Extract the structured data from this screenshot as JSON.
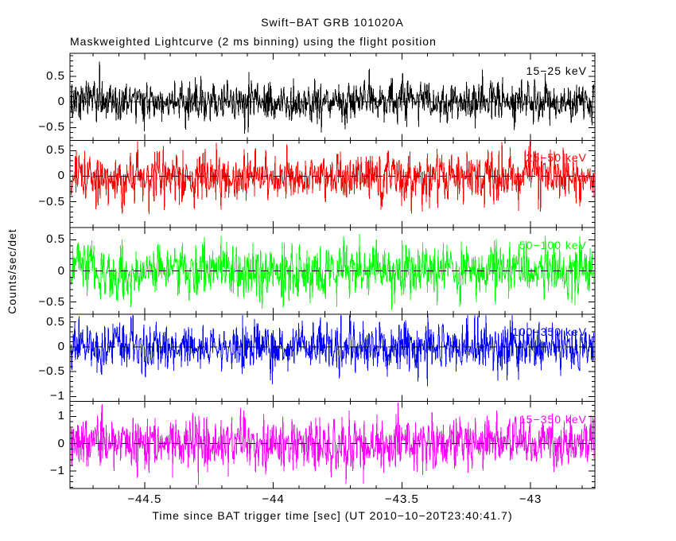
{
  "title": "Swift−BAT GRB 101020A",
  "subtitle": "Maskweighted Lightcurve (2 ms binning) using the flight position",
  "xlabel": "Time since BAT trigger time [sec] (UT 2010−10−20T23:40:41.7)",
  "ylabel": "Counts/sec/det",
  "chart_data": {
    "type": "line",
    "grid": false,
    "legend": "none",
    "x_range": [
      -44.79,
      -42.75
    ],
    "x_minor_step": 0.1,
    "x_major_step": 0.5,
    "x_ticks": [
      {
        "v": -44.5,
        "label": "−44.5"
      },
      {
        "v": -44.0,
        "label": "−44"
      },
      {
        "v": -43.5,
        "label": "−43.5"
      },
      {
        "v": -43.0,
        "label": "−43"
      }
    ],
    "bin_seconds": 0.002,
    "n_bins": 1020,
    "zero_line": {
      "y": 0,
      "style": "dashed",
      "color": "#000000"
    },
    "panels": [
      {
        "band": "15-25-kev",
        "label": "15−25 keV",
        "color": "#000000",
        "ylim": [
          -0.75,
          0.95
        ],
        "y_minor_step": 0.1,
        "y_major_step": 0.5,
        "yticks": [
          {
            "v": 0.5,
            "label": "0.5"
          },
          {
            "v": 0,
            "label": "0"
          },
          {
            "v": -0.5,
            "label": "−0.5"
          }
        ],
        "mean": 0,
        "noise_sigma": 0.21,
        "seed": 1101
      },
      {
        "band": "25-50-kev",
        "label": "25−50 keV",
        "color": "#ff0000",
        "ylim": [
          -1.0,
          0.7
        ],
        "y_minor_step": 0.1,
        "y_major_step": 0.5,
        "yticks": [
          {
            "v": 0.5,
            "label": "0.5"
          },
          {
            "v": 0,
            "label": "0"
          },
          {
            "v": -0.5,
            "label": "−0.5"
          }
        ],
        "mean": 0,
        "noise_sigma": 0.25,
        "seed": 2202
      },
      {
        "band": "50-100-kev",
        "label": "50−100 keV",
        "color": "#00ff00",
        "ylim": [
          -0.7,
          0.7
        ],
        "y_minor_step": 0.1,
        "y_major_step": 0.5,
        "yticks": [
          {
            "v": 0.5,
            "label": "0.5"
          },
          {
            "v": 0,
            "label": "0"
          },
          {
            "v": -0.5,
            "label": "−0.5"
          }
        ],
        "mean": 0,
        "noise_sigma": 0.22,
        "seed": 3303
      },
      {
        "band": "100-350-kev",
        "label": "100−350 keV",
        "color": "#0000ff",
        "ylim": [
          -1.1,
          0.65
        ],
        "y_minor_step": 0.1,
        "y_major_step": 0.5,
        "yticks": [
          {
            "v": 0.5,
            "label": "0.5"
          },
          {
            "v": 0,
            "label": "0"
          },
          {
            "v": -0.5,
            "label": "−0.5"
          },
          {
            "v": -1,
            "label": "−1"
          }
        ],
        "mean": 0,
        "noise_sigma": 0.26,
        "seed": 4404
      },
      {
        "band": "15-350-kev",
        "label": "15−350 keV",
        "color": "#ff00ff",
        "ylim": [
          -1.65,
          1.55
        ],
        "y_minor_step": 0.2,
        "y_major_step": 1,
        "yticks": [
          {
            "v": 1,
            "label": "1"
          },
          {
            "v": 0,
            "label": "0"
          },
          {
            "v": -1,
            "label": "−1"
          }
        ],
        "mean": 0,
        "noise_sigma": 0.48,
        "seed": 5505
      }
    ]
  }
}
